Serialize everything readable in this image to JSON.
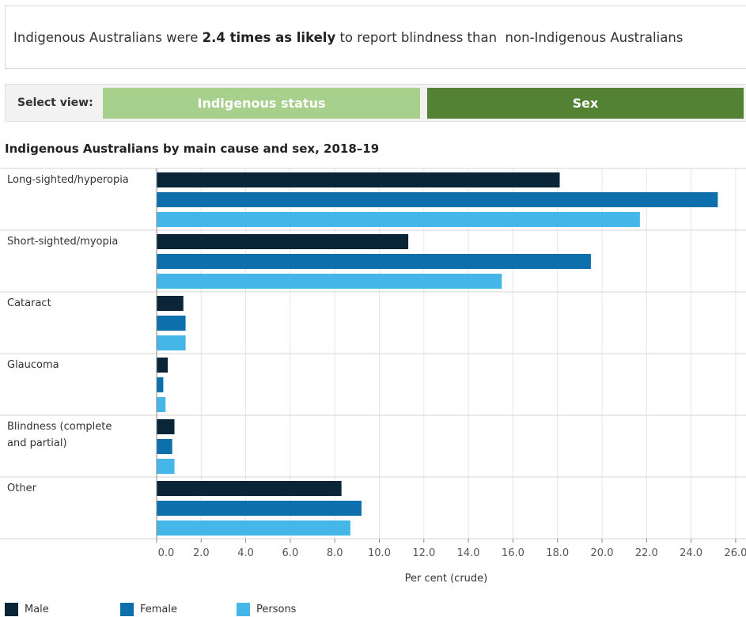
{
  "headline": {
    "prefix": "Indigenous Australians were ",
    "emphasis": "2.4 times as likely",
    "suffix": " to report blindness than  non-Indigenous Australians"
  },
  "view_selector": {
    "label": "Select view:",
    "options": [
      "Indigenous status",
      "Sex"
    ],
    "selected": "Sex"
  },
  "colors": {
    "male": "#0b2538",
    "female": "#0e6fad",
    "persons": "#45b6e8",
    "indigenous_btn": "#a8d08d",
    "sex_btn": "#548235"
  },
  "chart_data": {
    "type": "bar",
    "orientation": "horizontal",
    "title": "Indigenous Australians by main cause and sex, 2018–19",
    "categories": [
      "Long-sighted/hyperopia",
      "Short-sighted/myopia",
      "Cataract",
      "Glaucoma",
      "Blindness (complete and partial)",
      "Other"
    ],
    "series": [
      {
        "name": "Male",
        "values": [
          18.1,
          11.3,
          1.2,
          0.5,
          0.8,
          8.3
        ]
      },
      {
        "name": "Female",
        "values": [
          25.2,
          19.5,
          1.3,
          0.3,
          0.7,
          9.2
        ]
      },
      {
        "name": "Persons",
        "values": [
          21.7,
          15.5,
          1.3,
          0.4,
          0.8,
          8.7
        ]
      }
    ],
    "xlabel": "Per cent (crude)",
    "ylabel": "",
    "xlim": [
      0,
      26
    ],
    "x_ticks": [
      "0.0",
      "2.0",
      "4.0",
      "6.0",
      "8.0",
      "10.0",
      "12.0",
      "14.0",
      "16.0",
      "18.0",
      "20.0",
      "22.0",
      "24.0",
      "26.0"
    ],
    "grid": true,
    "legend_position": "bottom-left"
  }
}
